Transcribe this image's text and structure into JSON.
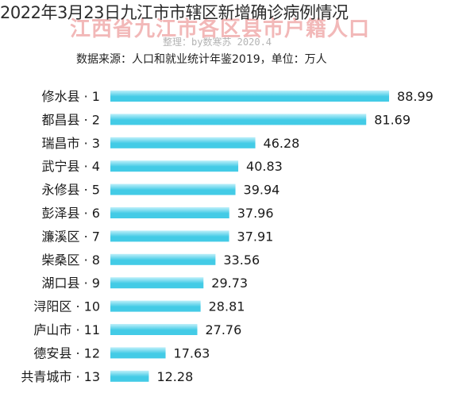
{
  "overlay_title": "2022年3月23日九江市市辖区新增确诊病例情况",
  "chart_data": {
    "type": "bar",
    "orientation": "horizontal",
    "title": "江西省九江市各区县市户籍人口",
    "credit": "整理：by数寒苏 2020.4",
    "source": "数据来源：人口和就业统计年鉴2019，单位：万人",
    "categories": [
      "修水县 · 1",
      "都昌县 · 2",
      "瑞昌市 · 3",
      "武宁县 · 4",
      "永修县 · 5",
      "彭泽县 · 6",
      "濂溪区 · 7",
      "柴桑区 · 8",
      "湖口县 · 9",
      "浔阳区 · 10",
      "庐山市 · 11",
      "德安县 · 12",
      "共青城市 · 13"
    ],
    "values": [
      88.99,
      81.69,
      46.28,
      40.83,
      39.94,
      37.96,
      37.91,
      33.56,
      29.73,
      28.81,
      27.76,
      17.63,
      12.28
    ],
    "value_labels": [
      "88.99",
      "81.69",
      "46.28",
      "40.83",
      "39.94",
      "37.96",
      "37.91",
      "33.56",
      "29.73",
      "28.81",
      "27.76",
      "17.63",
      "12.28"
    ],
    "bar_color": "#43cbe6",
    "bar_color_light": "#bff0fa",
    "xlim": [
      0,
      90
    ],
    "grid": false
  }
}
